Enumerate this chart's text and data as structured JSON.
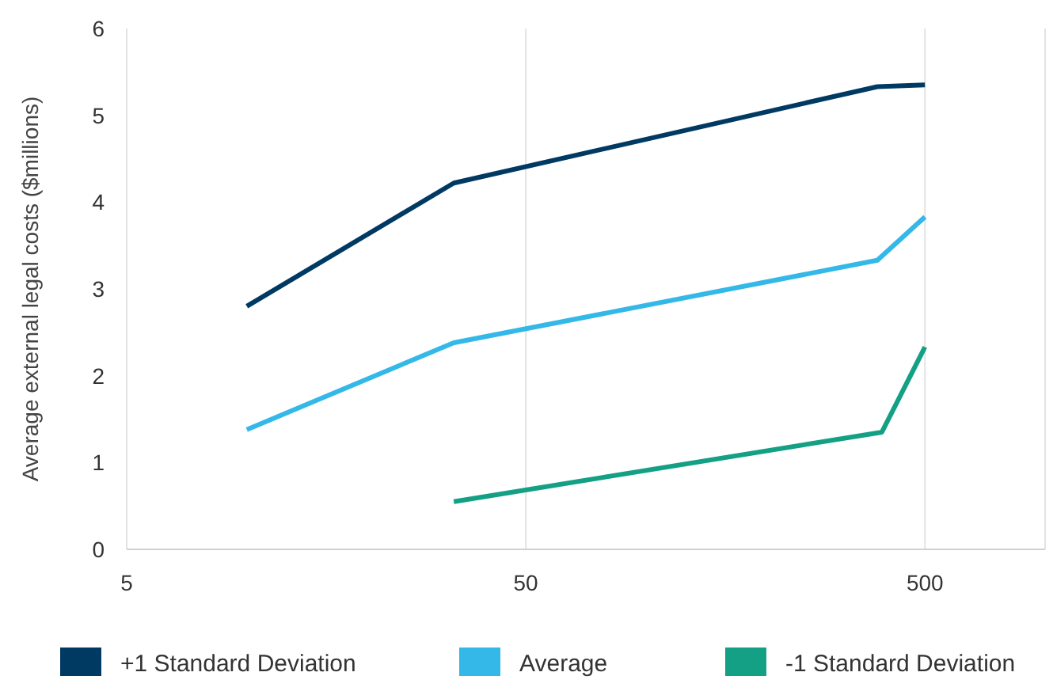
{
  "chart_data": {
    "type": "line",
    "ylabel": "Average external legal costs ($millions)",
    "log": "x",
    "xlim": [
      5,
      1000
    ],
    "xticks": [
      5,
      50,
      500
    ],
    "ylim": [
      0,
      6
    ],
    "yticks": [
      0,
      1,
      2,
      3,
      4,
      5,
      6
    ],
    "grid": "x",
    "legend": "bottom",
    "marker": "none",
    "line_style": "solid",
    "series": [
      {
        "name": "+1 Standard Deviation",
        "color": "#003a63",
        "x": [
          10,
          33,
          380,
          500
        ],
        "values": [
          2.8,
          4.22,
          5.33,
          5.35
        ]
      },
      {
        "name": "Average",
        "color": "#33b8e8",
        "x": [
          10,
          33,
          380,
          500
        ],
        "values": [
          1.38,
          2.38,
          3.33,
          3.83
        ]
      },
      {
        "name": "-1 Standard Deviation",
        "color": "#13a085",
        "x": [
          33,
          390,
          500
        ],
        "values": [
          0.55,
          1.35,
          2.33
        ]
      }
    ]
  }
}
